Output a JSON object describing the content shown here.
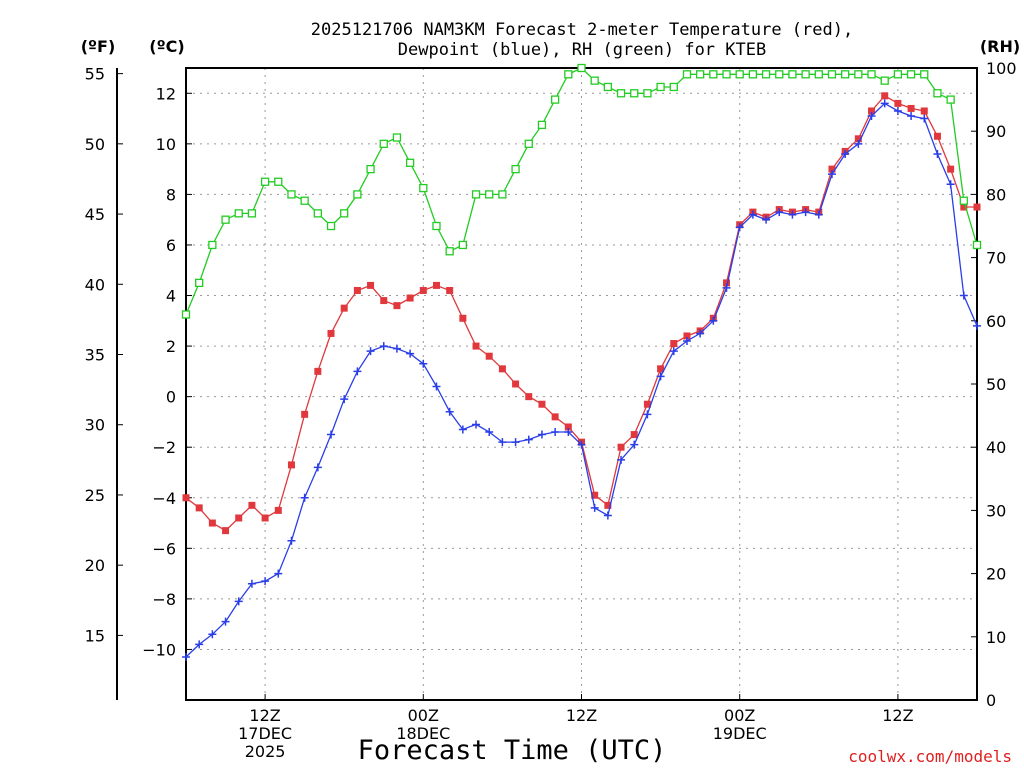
{
  "title_lines": [
    "2025121706 NAM3KM Forecast 2-meter Temperature (red),",
    "Dewpoint (blue), RH (green) for KTEB"
  ],
  "credit": "coolwx.com/models",
  "colors": {
    "temperature": "#e0383c",
    "dewpoint": "#2a3ee8",
    "rh": "#22cc22"
  },
  "chart_data": {
    "type": "line",
    "title": "2025121706 NAM3KM Forecast 2-meter Temperature (red), Dewpoint (blue), RH (green) for KTEB",
    "xlabel": "Forecast Time (UTC)",
    "x_hours": [
      0,
      1,
      2,
      3,
      4,
      5,
      6,
      7,
      8,
      9,
      10,
      11,
      12,
      13,
      14,
      15,
      16,
      17,
      18,
      19,
      20,
      21,
      22,
      23,
      24,
      25,
      26,
      27,
      28,
      29,
      30,
      31,
      32,
      33,
      34,
      35,
      36,
      37,
      38,
      39,
      40,
      41,
      42,
      43,
      44,
      45,
      46,
      47,
      48,
      49,
      50,
      51,
      52,
      53,
      54,
      55,
      56,
      57,
      58,
      59,
      60
    ],
    "x_ticks": [
      {
        "hour": 6,
        "lines": [
          "12Z",
          "17DEC",
          "2025"
        ]
      },
      {
        "hour": 18,
        "lines": [
          "00Z",
          "18DEC"
        ]
      },
      {
        "hour": 30,
        "lines": [
          "12Z"
        ]
      },
      {
        "hour": 42,
        "lines": [
          "00Z",
          "19DEC"
        ]
      },
      {
        "hour": 54,
        "lines": [
          "12Z"
        ]
      }
    ],
    "y_celsius": {
      "label": "(ºC)",
      "range": [
        -12,
        13
      ],
      "ticks": [
        -10,
        -8,
        -6,
        -4,
        -2,
        0,
        2,
        4,
        6,
        8,
        10,
        12
      ]
    },
    "y_fahrenheit": {
      "label": "(ºF)",
      "ticks": [
        15,
        20,
        25,
        30,
        35,
        40,
        45,
        50,
        55
      ]
    },
    "y_rh": {
      "label": "(RH)",
      "range": [
        0,
        100
      ],
      "ticks": [
        0,
        10,
        20,
        30,
        40,
        50,
        60,
        70,
        80,
        90,
        100
      ]
    },
    "grid": true,
    "series": [
      {
        "name": "Temperature",
        "units": "C",
        "color": "#e0383c",
        "marker": "filled-square",
        "values": [
          -4.0,
          -4.4,
          -5.0,
          -5.3,
          -4.8,
          -4.3,
          -4.8,
          -4.5,
          -2.7,
          -0.7,
          1.0,
          2.5,
          3.5,
          4.2,
          4.4,
          3.8,
          3.6,
          3.9,
          4.2,
          4.4,
          4.2,
          3.1,
          2.0,
          1.6,
          1.1,
          0.5,
          0.0,
          -0.3,
          -0.8,
          -1.2,
          -1.8,
          -3.9,
          -4.3,
          -2.0,
          -1.5,
          -0.3,
          1.1,
          2.1,
          2.4,
          2.6,
          3.1,
          4.5,
          6.8,
          7.3,
          7.1,
          7.4,
          7.3,
          7.4,
          7.3,
          9.0,
          9.7,
          10.2,
          11.3,
          11.9,
          11.6,
          11.4,
          11.3,
          10.3,
          9.0,
          7.5,
          7.5
        ]
      },
      {
        "name": "Dewpoint",
        "units": "C",
        "color": "#2a3ee8",
        "marker": "plus",
        "values": [
          -10.3,
          -9.8,
          -9.4,
          -8.9,
          -8.1,
          -7.4,
          -7.3,
          -7.0,
          -5.7,
          -4.0,
          -2.8,
          -1.5,
          -0.1,
          1.0,
          1.8,
          2.0,
          1.9,
          1.7,
          1.3,
          0.4,
          -0.6,
          -1.3,
          -1.1,
          -1.4,
          -1.8,
          -1.8,
          -1.7,
          -1.5,
          -1.4,
          -1.4,
          -1.9,
          -4.4,
          -4.7,
          -2.5,
          -1.9,
          -0.7,
          0.8,
          1.8,
          2.2,
          2.5,
          3.0,
          4.3,
          6.7,
          7.2,
          7.0,
          7.3,
          7.2,
          7.3,
          7.2,
          8.8,
          9.6,
          10.0,
          11.1,
          11.6,
          11.3,
          11.1,
          11.0,
          9.6,
          8.4,
          4.0,
          2.8
        ]
      },
      {
        "name": "RH",
        "units": "%",
        "color": "#22cc22",
        "marker": "open-square",
        "values": [
          61,
          66,
          72,
          76,
          77,
          77,
          82,
          82,
          80,
          79,
          77,
          75,
          77,
          80,
          84,
          88,
          89,
          85,
          81,
          75,
          71,
          72,
          80,
          80,
          80,
          84,
          88,
          91,
          95,
          99,
          100,
          98,
          97,
          96,
          96,
          96,
          97,
          97,
          99,
          99,
          99,
          99,
          99,
          99,
          99,
          99,
          99,
          99,
          99,
          99,
          99,
          99,
          99,
          98,
          99,
          99,
          99,
          96,
          95,
          79,
          72
        ]
      }
    ]
  }
}
